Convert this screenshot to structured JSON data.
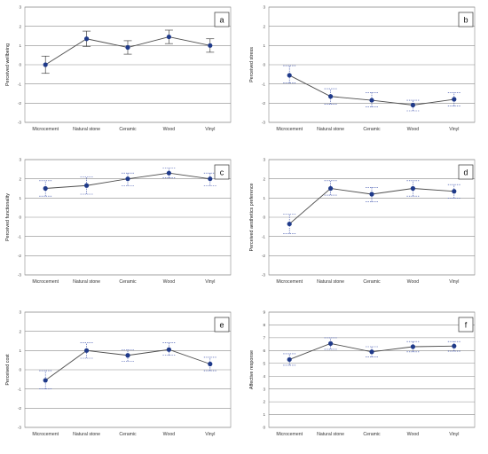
{
  "chart_data": [
    {
      "type": "line",
      "panel_label": "a",
      "ylabel": "Perceived wellbeing",
      "ylim": [
        -3,
        3
      ],
      "yticks": [
        "3",
        "2",
        "1",
        "0",
        "-1",
        "-2",
        "-3"
      ],
      "categories": [
        "Microcement",
        "Natural stone",
        "Ceramic",
        "Wood",
        "Vinyl"
      ],
      "values": [
        0.0,
        1.35,
        0.9,
        1.45,
        1.0
      ],
      "error_low": [
        -0.45,
        0.95,
        0.55,
        1.1,
        0.65
      ],
      "error_high": [
        0.45,
        1.75,
        1.25,
        1.8,
        1.35
      ],
      "error_style": "solid"
    },
    {
      "type": "line",
      "panel_label": "b",
      "ylabel": "Perceived stress",
      "ylim": [
        -3,
        3
      ],
      "yticks": [
        "3",
        "2",
        "1",
        "0",
        "-1",
        "-2",
        "-3"
      ],
      "categories": [
        "Microcement",
        "Natural stone",
        "Ceramic",
        "Wood",
        "Vinyl"
      ],
      "values": [
        -0.55,
        -1.65,
        -1.85,
        -2.1,
        -1.8
      ],
      "error_low": [
        -0.95,
        -2.05,
        -2.2,
        -2.4,
        -2.15
      ],
      "error_high": [
        -0.05,
        -1.25,
        -1.45,
        -1.85,
        -1.45
      ],
      "error_style": "dashed"
    },
    {
      "type": "line",
      "panel_label": "c",
      "ylabel": "Perceived functionality",
      "ylim": [
        -3,
        3
      ],
      "yticks": [
        "3",
        "2",
        "1",
        "0",
        "-1",
        "-2",
        "-3"
      ],
      "categories": [
        "Microcement",
        "Natural stone",
        "Ceramic",
        "Wood",
        "Vinyl"
      ],
      "values": [
        1.5,
        1.65,
        2.0,
        2.3,
        2.0
      ],
      "error_low": [
        1.1,
        1.2,
        1.65,
        2.05,
        1.65
      ],
      "error_high": [
        1.9,
        2.1,
        2.3,
        2.55,
        2.3
      ],
      "error_style": "dashed"
    },
    {
      "type": "line",
      "panel_label": "d",
      "ylabel": "Perceived aesthetics preference",
      "ylim": [
        -3,
        3
      ],
      "yticks": [
        "3",
        "2",
        "1",
        "0",
        "-1",
        "-2",
        "-3"
      ],
      "categories": [
        "Microcement",
        "Natural stone",
        "Ceramic",
        "Wood",
        "Vinyl"
      ],
      "values": [
        -0.35,
        1.5,
        1.2,
        1.5,
        1.35
      ],
      "error_low": [
        -0.85,
        1.15,
        0.8,
        1.1,
        1.0
      ],
      "error_high": [
        0.15,
        1.9,
        1.55,
        1.9,
        1.7
      ],
      "error_style": "dashed"
    },
    {
      "type": "line",
      "panel_label": "e",
      "ylabel": "Perceived cost",
      "ylim": [
        -3,
        3
      ],
      "yticks": [
        "3",
        "2",
        "1",
        "0",
        "-1",
        "-2",
        "-3"
      ],
      "categories": [
        "Microcement",
        "Natural stone",
        "Ceramic",
        "Wood",
        "Vinyl"
      ],
      "values": [
        -0.55,
        1.0,
        0.75,
        1.05,
        0.3
      ],
      "error_low": [
        -1.0,
        0.6,
        0.45,
        0.75,
        -0.05
      ],
      "error_high": [
        -0.05,
        1.4,
        1.05,
        1.4,
        0.65
      ],
      "error_style": "dashed"
    },
    {
      "type": "line",
      "panel_label": "f",
      "ylabel": "Affective response",
      "ylim": [
        0,
        9
      ],
      "yticks": [
        "9",
        "8",
        "7",
        "6",
        "5",
        "4",
        "3",
        "2",
        "1",
        "0"
      ],
      "categories": [
        "Microcement",
        "Natural stone",
        "Ceramic",
        "Wood",
        "Vinyl"
      ],
      "values": [
        5.3,
        6.55,
        5.9,
        6.3,
        6.35
      ],
      "error_low": [
        4.85,
        6.1,
        5.5,
        5.9,
        5.95
      ],
      "error_high": [
        5.75,
        7.0,
        6.3,
        6.7,
        6.7
      ],
      "error_style": "dashed"
    }
  ]
}
